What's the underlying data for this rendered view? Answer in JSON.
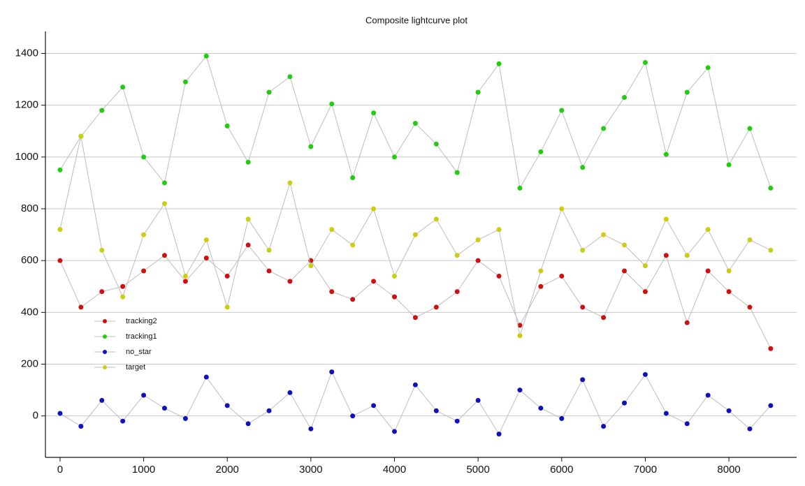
{
  "chart_data": {
    "type": "scatter",
    "title": "Composite lightcurve plot",
    "x": [
      0,
      250,
      500,
      750,
      1000,
      1250,
      1500,
      1750,
      2000,
      2250,
      2500,
      2750,
      3000,
      3250,
      3500,
      3750,
      4000,
      4250,
      4500,
      4750,
      5000,
      5250,
      5500,
      5750,
      6000,
      6250,
      6500,
      6750,
      7000,
      7250,
      7500,
      7750,
      8000,
      8250,
      8500
    ],
    "series": [
      {
        "name": "tracking2",
        "color": "#cc1111",
        "values": [
          600,
          420,
          480,
          500,
          560,
          620,
          520,
          610,
          540,
          660,
          560,
          520,
          600,
          480,
          450,
          520,
          460,
          380,
          420,
          480,
          600,
          540,
          350,
          500,
          540,
          420,
          380,
          560,
          480,
          620,
          360,
          560,
          480,
          420,
          260
        ]
      },
      {
        "name": "tracking1",
        "color": "#22cc11",
        "values": [
          950,
          1080,
          1180,
          1270,
          1000,
          900,
          1290,
          1390,
          1120,
          980,
          1250,
          1310,
          1040,
          1205,
          920,
          1170,
          1000,
          1130,
          1050,
          940,
          1250,
          1360,
          880,
          1020,
          1180,
          960,
          1110,
          1230,
          1365,
          1010,
          1250,
          1345,
          970,
          1110,
          880
        ]
      },
      {
        "name": "no_star",
        "color": "#1111bb",
        "values": [
          10,
          -40,
          60,
          -20,
          80,
          30,
          -10,
          150,
          40,
          -30,
          20,
          90,
          -50,
          170,
          0,
          40,
          -60,
          120,
          20,
          -20,
          60,
          -70,
          100,
          30,
          -10,
          140,
          -40,
          50,
          160,
          10,
          -30,
          80,
          20,
          -50,
          40
        ]
      },
      {
        "name": "target",
        "color": "#cccc11",
        "values": [
          720,
          1080,
          640,
          460,
          700,
          820,
          540,
          680,
          420,
          760,
          640,
          900,
          580,
          720,
          660,
          800,
          540,
          700,
          760,
          620,
          680,
          720,
          310,
          560,
          800,
          640,
          700,
          660,
          580,
          760,
          620,
          720,
          560,
          680,
          640
        ]
      }
    ],
    "xlim": [
      -175,
      8810
    ],
    "ylim": [
      -160,
      1485
    ],
    "xticks": [
      0,
      1000,
      2000,
      3000,
      4000,
      5000,
      6000,
      7000,
      8000
    ],
    "yticks": [
      0,
      200,
      400,
      600,
      800,
      1000,
      1200,
      1400
    ],
    "grid": true,
    "legend": "lower left"
  }
}
